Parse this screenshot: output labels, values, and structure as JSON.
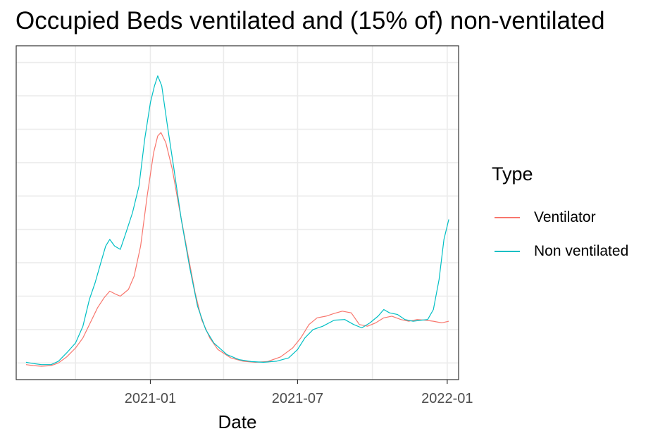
{
  "chart_data": {
    "type": "line",
    "title": "Occupied Beds ventilated and (15% of) non-ventilated",
    "xlabel": "Date",
    "ylabel": "",
    "x_ticks": [
      "2020-10-01",
      "2021-01-01",
      "2021-04-01",
      "2021-07-01",
      "2021-10-01",
      "2022-01-01"
    ],
    "x_tick_labels": [
      "2021-01",
      "2021-07",
      "2022-01"
    ],
    "x_tick_label_dates": [
      "2021-01-01",
      "2021-07-01",
      "2022-01-01"
    ],
    "xlim": [
      "2020-07-20",
      "2022-01-15"
    ],
    "y_gridlines": [
      0.05,
      0.15,
      0.25,
      0.35,
      0.45,
      0.55,
      0.65,
      0.75,
      0.85,
      0.95
    ],
    "ylim": [
      0,
      1
    ],
    "y_tick_labels_shown": false,
    "grid": true,
    "legend": {
      "title": "Type",
      "placement": "right"
    },
    "series": [
      {
        "name": "Ventilator",
        "color": "#F8766D",
        "points": [
          [
            "2020-08-01",
            0.045
          ],
          [
            "2020-08-10",
            0.042
          ],
          [
            "2020-08-20",
            0.04
          ],
          [
            "2020-09-01",
            0.042
          ],
          [
            "2020-09-10",
            0.05
          ],
          [
            "2020-09-20",
            0.068
          ],
          [
            "2020-10-01",
            0.095
          ],
          [
            "2020-10-10",
            0.125
          ],
          [
            "2020-10-20",
            0.175
          ],
          [
            "2020-10-28",
            0.215
          ],
          [
            "2020-11-05",
            0.245
          ],
          [
            "2020-11-12",
            0.265
          ],
          [
            "2020-11-20",
            0.255
          ],
          [
            "2020-11-25",
            0.25
          ],
          [
            "2020-12-05",
            0.27
          ],
          [
            "2020-12-12",
            0.31
          ],
          [
            "2020-12-20",
            0.4
          ],
          [
            "2020-12-28",
            0.55
          ],
          [
            "2021-01-05",
            0.68
          ],
          [
            "2021-01-10",
            0.73
          ],
          [
            "2021-01-14",
            0.74
          ],
          [
            "2021-01-20",
            0.71
          ],
          [
            "2021-01-28",
            0.63
          ],
          [
            "2021-02-05",
            0.52
          ],
          [
            "2021-02-15",
            0.39
          ],
          [
            "2021-02-25",
            0.26
          ],
          [
            "2021-03-05",
            0.18
          ],
          [
            "2021-03-15",
            0.125
          ],
          [
            "2021-03-25",
            0.09
          ],
          [
            "2021-04-10",
            0.065
          ],
          [
            "2021-04-25",
            0.055
          ],
          [
            "2021-05-10",
            0.052
          ],
          [
            "2021-05-25",
            0.054
          ],
          [
            "2021-06-10",
            0.068
          ],
          [
            "2021-06-25",
            0.095
          ],
          [
            "2021-07-05",
            0.125
          ],
          [
            "2021-07-15",
            0.165
          ],
          [
            "2021-07-25",
            0.185
          ],
          [
            "2021-08-05",
            0.19
          ],
          [
            "2021-08-15",
            0.198
          ],
          [
            "2021-08-25",
            0.205
          ],
          [
            "2021-09-05",
            0.2
          ],
          [
            "2021-09-15",
            0.165
          ],
          [
            "2021-09-25",
            0.16
          ],
          [
            "2021-10-05",
            0.17
          ],
          [
            "2021-10-15",
            0.185
          ],
          [
            "2021-10-25",
            0.19
          ],
          [
            "2021-11-05",
            0.18
          ],
          [
            "2021-11-15",
            0.175
          ],
          [
            "2021-11-25",
            0.18
          ],
          [
            "2021-12-05",
            0.178
          ],
          [
            "2021-12-15",
            0.175
          ],
          [
            "2021-12-25",
            0.17
          ],
          [
            "2022-01-03",
            0.175
          ]
        ]
      },
      {
        "name": "Non ventilated",
        "color": "#00BFC4",
        "points": [
          [
            "2020-08-01",
            0.052
          ],
          [
            "2020-08-10",
            0.048
          ],
          [
            "2020-08-20",
            0.045
          ],
          [
            "2020-09-01",
            0.045
          ],
          [
            "2020-09-10",
            0.055
          ],
          [
            "2020-09-20",
            0.08
          ],
          [
            "2020-10-01",
            0.11
          ],
          [
            "2020-10-10",
            0.16
          ],
          [
            "2020-10-18",
            0.24
          ],
          [
            "2020-10-25",
            0.29
          ],
          [
            "2020-11-01",
            0.35
          ],
          [
            "2020-11-07",
            0.4
          ],
          [
            "2020-11-12",
            0.42
          ],
          [
            "2020-11-18",
            0.4
          ],
          [
            "2020-11-25",
            0.39
          ],
          [
            "2020-12-02",
            0.44
          ],
          [
            "2020-12-10",
            0.5
          ],
          [
            "2020-12-18",
            0.58
          ],
          [
            "2020-12-25",
            0.72
          ],
          [
            "2021-01-01",
            0.83
          ],
          [
            "2021-01-06",
            0.88
          ],
          [
            "2021-01-10",
            0.91
          ],
          [
            "2021-01-15",
            0.88
          ],
          [
            "2021-01-22",
            0.76
          ],
          [
            "2021-01-30",
            0.63
          ],
          [
            "2021-02-08",
            0.48
          ],
          [
            "2021-02-18",
            0.34
          ],
          [
            "2021-02-28",
            0.22
          ],
          [
            "2021-03-10",
            0.15
          ],
          [
            "2021-03-20",
            0.11
          ],
          [
            "2021-04-05",
            0.075
          ],
          [
            "2021-04-20",
            0.06
          ],
          [
            "2021-05-05",
            0.054
          ],
          [
            "2021-05-20",
            0.052
          ],
          [
            "2021-06-05",
            0.055
          ],
          [
            "2021-06-20",
            0.065
          ],
          [
            "2021-07-01",
            0.09
          ],
          [
            "2021-07-10",
            0.125
          ],
          [
            "2021-07-20",
            0.15
          ],
          [
            "2021-08-01",
            0.16
          ],
          [
            "2021-08-15",
            0.178
          ],
          [
            "2021-08-28",
            0.18
          ],
          [
            "2021-09-08",
            0.165
          ],
          [
            "2021-09-18",
            0.155
          ],
          [
            "2021-09-28",
            0.17
          ],
          [
            "2021-10-08",
            0.19
          ],
          [
            "2021-10-15",
            0.21
          ],
          [
            "2021-10-22",
            0.2
          ],
          [
            "2021-11-01",
            0.195
          ],
          [
            "2021-11-10",
            0.18
          ],
          [
            "2021-11-20",
            0.175
          ],
          [
            "2021-11-30",
            0.178
          ],
          [
            "2021-12-08",
            0.18
          ],
          [
            "2021-12-15",
            0.21
          ],
          [
            "2021-12-22",
            0.3
          ],
          [
            "2021-12-28",
            0.42
          ],
          [
            "2022-01-03",
            0.48
          ]
        ]
      }
    ]
  }
}
